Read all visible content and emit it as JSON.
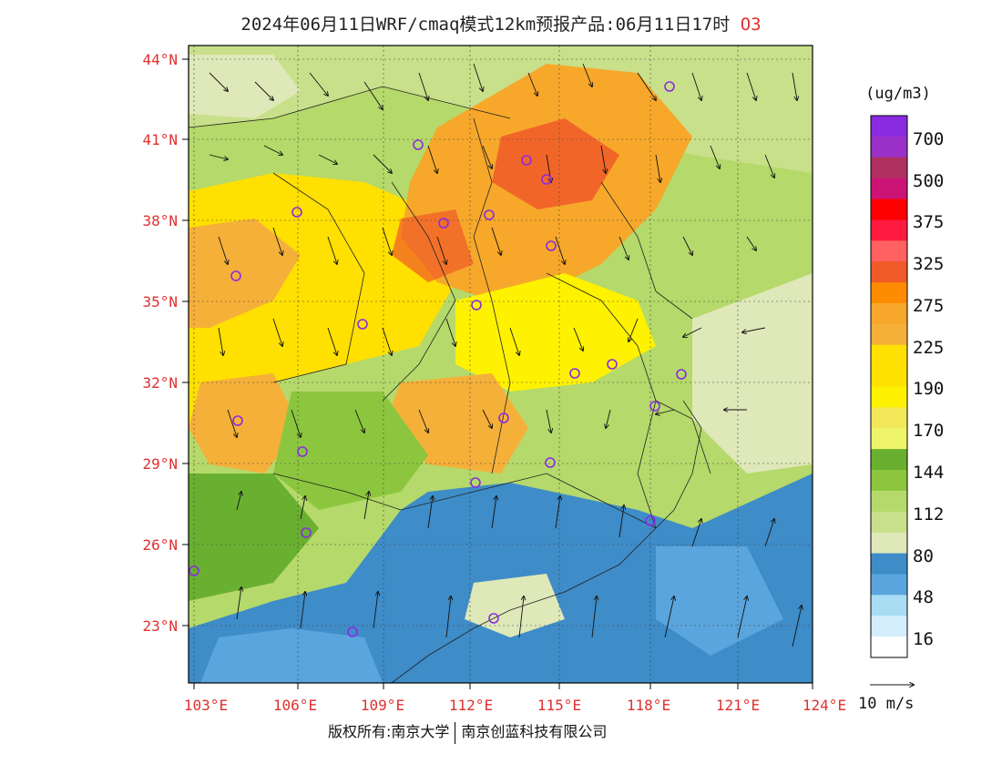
{
  "title": {
    "main": "2024年06月11日WRF/cmaq模式12km预报产品:06月11日17时",
    "species": "O3"
  },
  "axes": {
    "lat_labels": [
      "44°N",
      "41°N",
      "38°N",
      "35°N",
      "32°N",
      "29°N",
      "26°N",
      "23°N"
    ],
    "lon_labels": [
      "103°E",
      "106°E",
      "109°E",
      "112°E",
      "115°E",
      "118°E",
      "121°E",
      "124°E"
    ]
  },
  "legend": {
    "unit": "(ug/m3)",
    "labels": [
      "700",
      "500",
      "375",
      "325",
      "275",
      "225",
      "190",
      "170",
      "144",
      "112",
      "80",
      "48",
      "16"
    ],
    "colors": [
      "#8a2be2",
      "#9b30c8",
      "#b03060",
      "#cc1477",
      "#ff0000",
      "#ff1a40",
      "#ff6060",
      "#f05a28",
      "#ff8c00",
      "#f7a82a",
      "#f5b03a",
      "#ffe000",
      "#ffe100",
      "#fff200",
      "#f2e85a",
      "#eef56a",
      "#6ab030",
      "#8cc63f",
      "#b5d96a",
      "#c8e08a",
      "#dfe8b8",
      "#3e8cc8",
      "#5aa5dd",
      "#a8dcf2",
      "#d4eefb",
      "#ffffff"
    ]
  },
  "wind_scale": {
    "label": "10 m/s"
  },
  "footer": {
    "left": "版权所有:南京大学",
    "right": "南京创蓝科技有限公司"
  },
  "colors": {
    "label_red": "#e03030",
    "station_circle": "#8a2be2"
  }
}
